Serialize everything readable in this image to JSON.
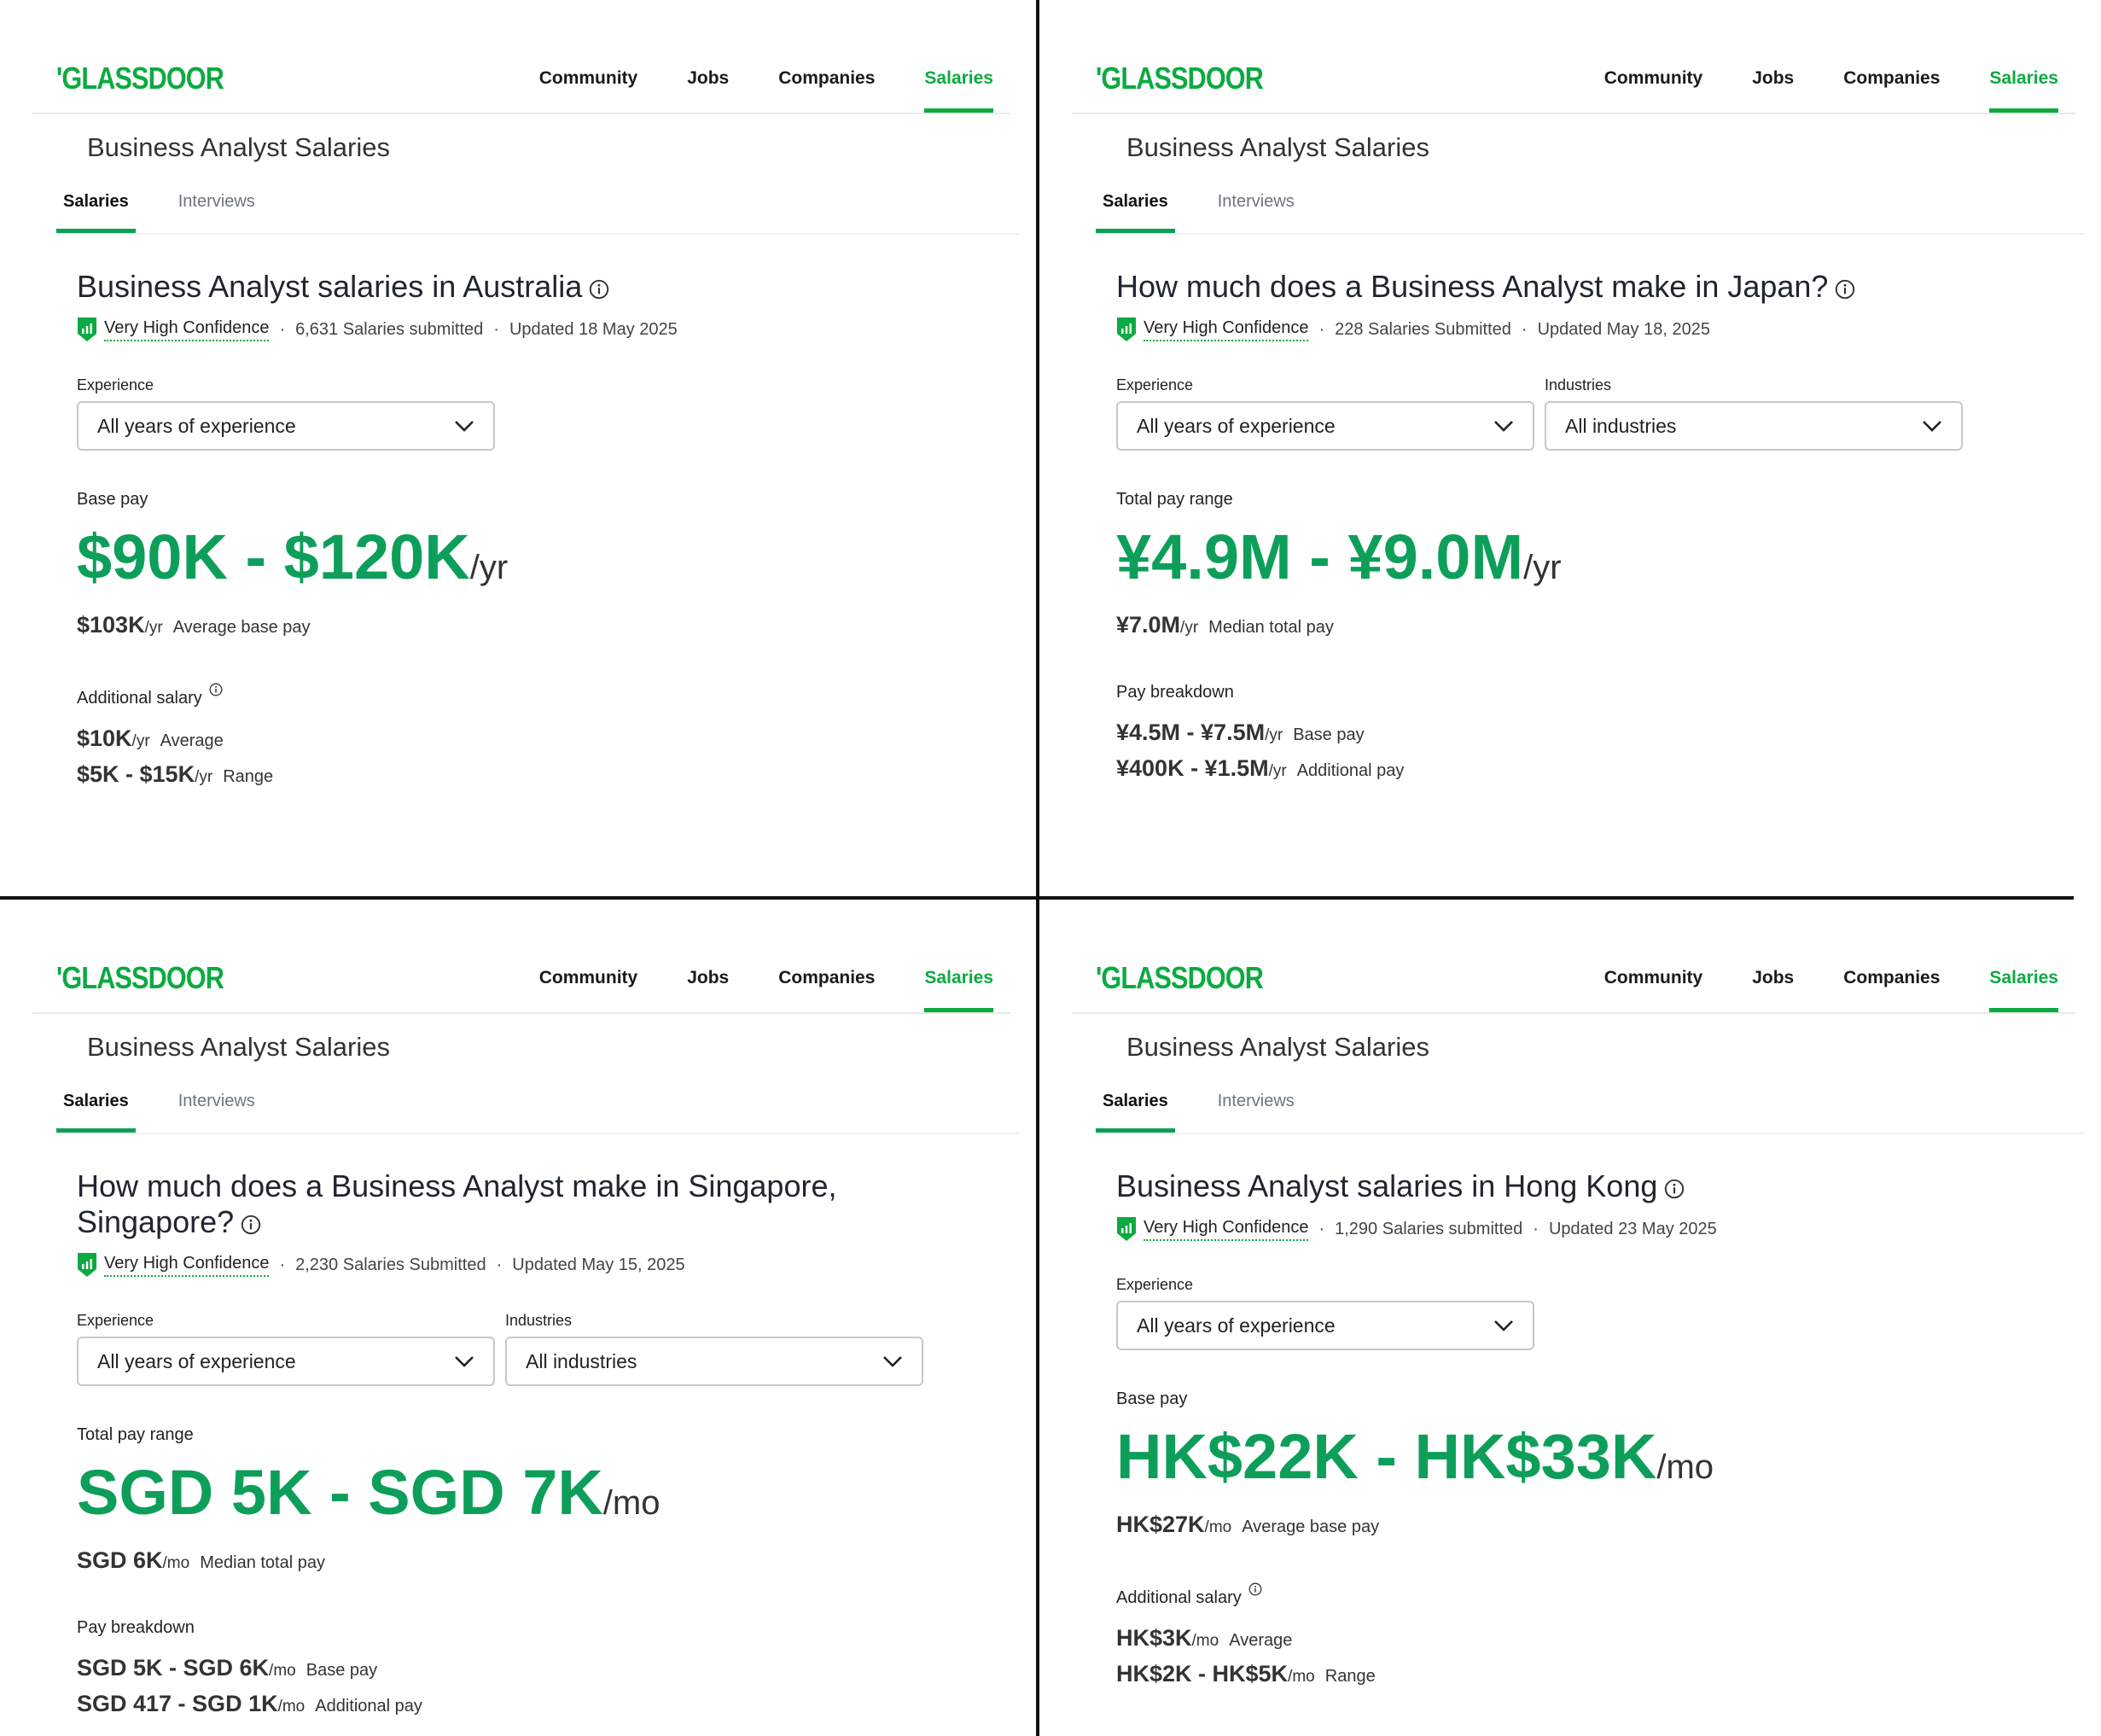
{
  "panels": [
    {
      "logo": "GLASSDOOR",
      "nav": [
        "Community",
        "Jobs",
        "Companies",
        "Salaries"
      ],
      "page_title": "Business Analyst Salaries",
      "tabs": [
        "Salaries",
        "Interviews"
      ],
      "heading": "Business Analyst salaries in Australia",
      "confidence": "Very High Confidence",
      "submitted": "6,631 Salaries submitted",
      "updated": "Updated 18 May 2025",
      "filters": [
        {
          "label": "Experience",
          "value": "All years of experience"
        }
      ],
      "pay_label": "Base pay",
      "range": "$90K - $120K",
      "range_unit": "/yr",
      "summary": {
        "value": "$103K",
        "unit": "/yr",
        "label": "Average base pay"
      },
      "section_label": "Additional salary",
      "rows": [
        {
          "value": "$10K",
          "unit": "/yr",
          "label": "Average"
        },
        {
          "value": "$5K - $15K",
          "unit": "/yr",
          "label": "Range"
        }
      ]
    },
    {
      "logo": "GLASSDOOR",
      "nav": [
        "Community",
        "Jobs",
        "Companies",
        "Salaries"
      ],
      "page_title": "Business Analyst Salaries",
      "tabs": [
        "Salaries",
        "Interviews"
      ],
      "heading": "How much does a Business Analyst make in Japan?",
      "confidence": "Very High Confidence",
      "submitted": "228 Salaries Submitted",
      "updated": "Updated May 18, 2025",
      "filters": [
        {
          "label": "Experience",
          "value": "All years of experience"
        },
        {
          "label": "Industries",
          "value": "All industries"
        }
      ],
      "pay_label": "Total pay range",
      "range": "¥4.9M - ¥9.0M",
      "range_unit": "/yr",
      "summary": {
        "value": "¥7.0M",
        "unit": "/yr",
        "label": "Median total pay"
      },
      "section_label": "Pay breakdown",
      "rows": [
        {
          "value": "¥4.5M - ¥7.5M",
          "unit": "/yr",
          "label": "Base pay"
        },
        {
          "value": "¥400K - ¥1.5M",
          "unit": "/yr",
          "label": "Additional pay"
        }
      ]
    },
    {
      "logo": "GLASSDOOR",
      "nav": [
        "Community",
        "Jobs",
        "Companies",
        "Salaries"
      ],
      "page_title": "Business Analyst Salaries",
      "tabs": [
        "Salaries",
        "Interviews"
      ],
      "heading": "How much does a Business Analyst make in Singapore, Singapore?",
      "confidence": "Very High Confidence",
      "submitted": "2,230 Salaries Submitted",
      "updated": "Updated May 15, 2025",
      "filters": [
        {
          "label": "Experience",
          "value": "All years of experience"
        },
        {
          "label": "Industries",
          "value": "All industries"
        }
      ],
      "pay_label": "Total pay range",
      "range": "SGD 5K - SGD 7K",
      "range_unit": "/mo",
      "summary": {
        "value": "SGD 6K",
        "unit": "/mo",
        "label": "Median total pay"
      },
      "section_label": "Pay breakdown",
      "rows": [
        {
          "value": "SGD 5K - SGD 6K",
          "unit": "/mo",
          "label": "Base pay"
        },
        {
          "value": "SGD 417 - SGD 1K",
          "unit": "/mo",
          "label": "Additional pay"
        }
      ]
    },
    {
      "logo": "GLASSDOOR",
      "nav": [
        "Community",
        "Jobs",
        "Companies",
        "Salaries"
      ],
      "page_title": "Business Analyst Salaries",
      "tabs": [
        "Salaries",
        "Interviews"
      ],
      "heading": "Business Analyst salaries in Hong Kong",
      "confidence": "Very High Confidence",
      "submitted": "1,290 Salaries submitted",
      "updated": "Updated 23 May 2025",
      "filters": [
        {
          "label": "Experience",
          "value": "All years of experience"
        }
      ],
      "pay_label": "Base pay",
      "range": "HK$22K - HK$33K",
      "range_unit": "/mo",
      "summary": {
        "value": "HK$27K",
        "unit": "/mo",
        "label": "Average base pay"
      },
      "section_label": "Additional salary",
      "rows": [
        {
          "value": "HK$3K",
          "unit": "/mo",
          "label": "Average"
        },
        {
          "value": "HK$2K - HK$5K",
          "unit": "/mo",
          "label": "Range"
        }
      ]
    }
  ]
}
